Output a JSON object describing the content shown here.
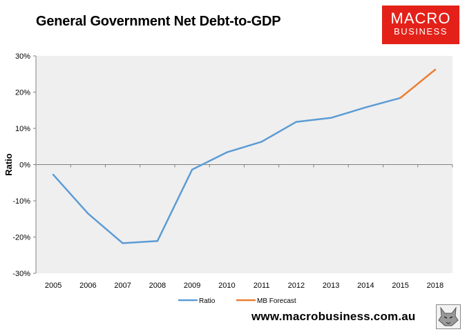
{
  "chart_data": {
    "type": "line",
    "title": "General Government Net Debt-to-GDP",
    "ylabel": "Ratio",
    "xlabel": "",
    "categories": [
      "2005",
      "2006",
      "2007",
      "2008",
      "2009",
      "2010",
      "2011",
      "2012",
      "2013",
      "2014",
      "2015",
      "2018"
    ],
    "ylim": [
      -30,
      30
    ],
    "yticks": [
      30,
      20,
      10,
      0,
      -10,
      -20,
      -30
    ],
    "ytick_labels": [
      "30%",
      "20%",
      "10%",
      "0%",
      "-10%",
      "-20%",
      "-30%"
    ],
    "grid": false,
    "legend_position": "bottom",
    "series": [
      {
        "name": "Ratio",
        "color": "#5b9bd5",
        "values": [
          -2.8,
          -13.5,
          -21.7,
          -21.1,
          -1.4,
          3.4,
          6.3,
          11.8,
          12.9,
          15.8,
          18.4,
          null
        ]
      },
      {
        "name": "MB Forecast",
        "color": "#ed7d31",
        "values": [
          null,
          null,
          null,
          null,
          null,
          null,
          null,
          null,
          null,
          null,
          18.4,
          26.2
        ]
      }
    ]
  },
  "branding": {
    "logo_line1": "MACRO",
    "logo_line2": "BUSINESS",
    "logo_color": "#e32119",
    "website": "www.macrobusiness.com.au",
    "mascot_icon": "wolf-icon"
  }
}
